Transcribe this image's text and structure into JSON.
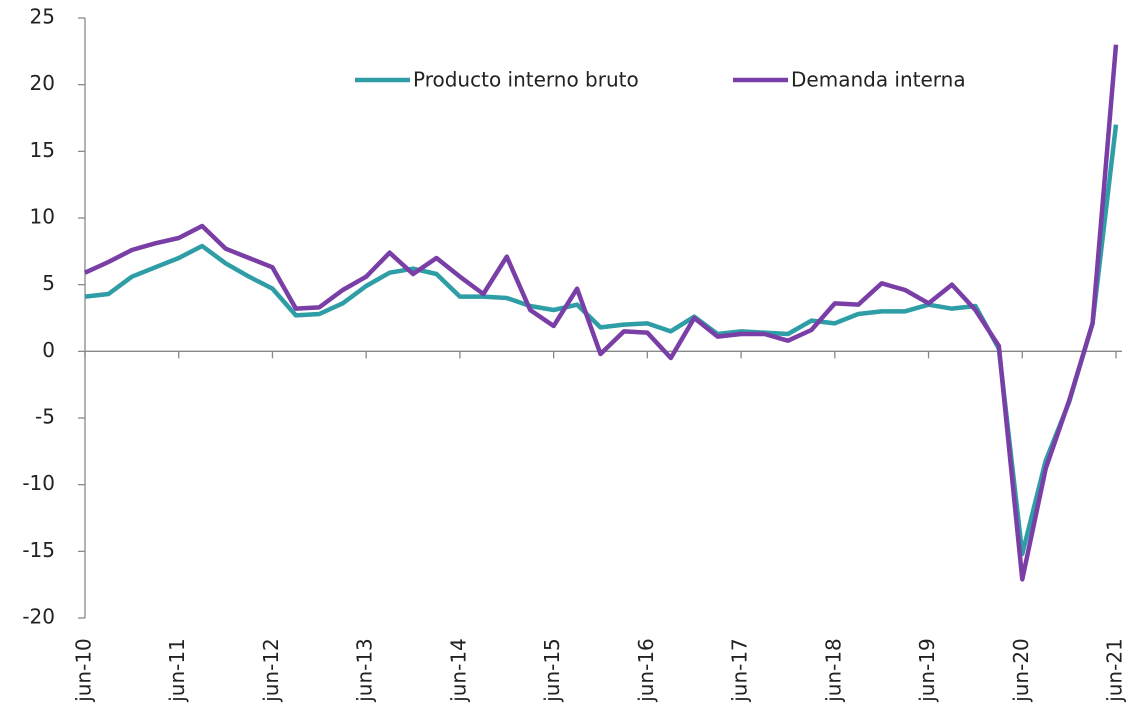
{
  "chart_data": {
    "type": "line",
    "categories": [
      "jun-10",
      null,
      null,
      null,
      "jun-11",
      null,
      null,
      null,
      "jun-12",
      null,
      null,
      null,
      "jun-13",
      null,
      null,
      null,
      "jun-14",
      null,
      null,
      null,
      "jun-15",
      null,
      null,
      null,
      "jun-16",
      null,
      null,
      null,
      "jun-17",
      null,
      null,
      null,
      "jun-18",
      null,
      null,
      null,
      "jun-19",
      null,
      null,
      null,
      "jun-20",
      null,
      null,
      null,
      "jun-21"
    ],
    "series": [
      {
        "name": "Producto interno bruto",
        "color": "#2e9da6",
        "values": [
          4.1,
          4.3,
          5.6,
          6.3,
          7.0,
          7.9,
          6.6,
          5.6,
          4.7,
          2.7,
          2.8,
          3.6,
          4.9,
          5.9,
          6.2,
          5.8,
          4.1,
          4.1,
          4.0,
          3.4,
          3.1,
          3.5,
          1.8,
          2.0,
          2.1,
          1.5,
          2.6,
          1.3,
          1.5,
          1.4,
          1.3,
          2.3,
          2.1,
          2.8,
          3.0,
          3.0,
          3.5,
          3.2,
          3.4,
          0.2,
          -15.2,
          -8.2,
          -3.8,
          2.1,
          17.0
        ]
      },
      {
        "name": "Demanda interna",
        "color": "#7a3fa6",
        "values": [
          5.9,
          6.7,
          7.6,
          8.1,
          8.5,
          9.4,
          7.7,
          7.0,
          6.3,
          3.2,
          3.3,
          4.6,
          5.6,
          7.4,
          5.8,
          7.0,
          5.6,
          4.3,
          7.1,
          3.1,
          1.9,
          4.7,
          -0.2,
          1.5,
          1.4,
          -0.5,
          2.5,
          1.1,
          1.3,
          1.3,
          0.8,
          1.6,
          3.6,
          3.5,
          5.1,
          4.6,
          3.6,
          5.0,
          3.1,
          0.4,
          -17.1,
          -8.8,
          -3.7,
          2.1,
          23.0
        ]
      }
    ],
    "ylim": [
      -20,
      25
    ],
    "yticks": [
      -20,
      -15,
      -10,
      -5,
      0,
      5,
      10,
      15,
      20,
      25
    ],
    "grid": false
  }
}
